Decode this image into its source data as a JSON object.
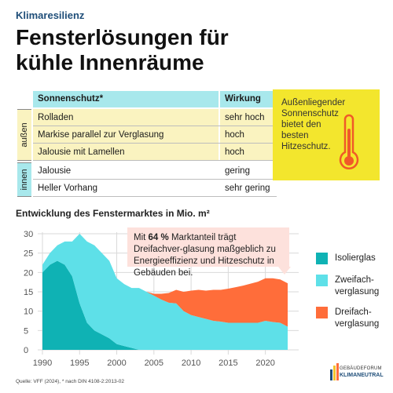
{
  "header": {
    "kicker": "Klimaresilienz",
    "title": "Fensterlösungen für kühle Innenräume"
  },
  "table": {
    "col_protection": "Sonnenschutz*",
    "col_effect": "Wirkung",
    "group_outside": "außen",
    "group_inside": "innen",
    "rows": [
      {
        "name": "Rolladen",
        "effect": "sehr hoch"
      },
      {
        "name": "Markise parallel zur Verglasung",
        "effect": "hoch"
      },
      {
        "name": "Jalousie mit Lamellen",
        "effect": "hoch"
      },
      {
        "name": "Jalousie",
        "effect": "gering"
      },
      {
        "name": "Heller Vorhang",
        "effect": "sehr gering"
      }
    ]
  },
  "note": {
    "text": "Außenliegender Sonnenschutz bietet den besten Hitzeschutz.",
    "icon": "thermometer-icon"
  },
  "chart_title": "Entwicklung des Fenstermarktes in Mio. m²",
  "callout": {
    "pre": "Mit ",
    "highlight": "64 %",
    "post": " Marktanteil trägt Dreifachver-glasung maßgeblich zu Energieeffizienz und Hitzeschutz in Gebäuden bei."
  },
  "chart_data": {
    "type": "area",
    "stacked": true,
    "title": "Entwicklung des Fenstermarktes in Mio. m²",
    "xlim": [
      1990,
      2023
    ],
    "ylim": [
      0,
      30
    ],
    "x_ticks": [
      1990,
      1995,
      2000,
      2005,
      2010,
      2015,
      2020
    ],
    "y_ticks": [
      0,
      5,
      10,
      15,
      20,
      25,
      30
    ],
    "grid": true,
    "x": [
      1990,
      1991,
      1992,
      1993,
      1994,
      1995,
      1996,
      1997,
      1998,
      1999,
      2000,
      2001,
      2002,
      2003,
      2004,
      2005,
      2006,
      2007,
      2008,
      2009,
      2010,
      2011,
      2012,
      2013,
      2014,
      2015,
      2016,
      2017,
      2018,
      2019,
      2020,
      2021,
      2022,
      2023
    ],
    "series": [
      {
        "name": "Isolierglas",
        "color": "#0fb2b4",
        "values": [
          20,
          22,
          23,
          22,
          19,
          12,
          7,
          5,
          4,
          3,
          1.5,
          1,
          0.5,
          0,
          0,
          0,
          0,
          0,
          0,
          0,
          0,
          0,
          0,
          0,
          0,
          0,
          0,
          0,
          0,
          0,
          0,
          0,
          0,
          0
        ]
      },
      {
        "name": "Zweifach-verglasung",
        "color": "#5ee0e8",
        "values": [
          2,
          3,
          4,
          6,
          9,
          18,
          21,
          22,
          21,
          20,
          17,
          16,
          15.5,
          16,
          15,
          14,
          13,
          12.2,
          12,
          10,
          9,
          8.5,
          8,
          7.5,
          7.3,
          7,
          7,
          7,
          7,
          7,
          7.5,
          7.2,
          7,
          6
        ]
      },
      {
        "name": "Dreifach-verglasung",
        "color": "#ff6d3a",
        "values": [
          0,
          0,
          0,
          0,
          0,
          0,
          0,
          0,
          0,
          0,
          0,
          0,
          0,
          0,
          0,
          0.5,
          1.5,
          2.5,
          3.5,
          5,
          6.3,
          7,
          7.3,
          8,
          8.2,
          8.8,
          9.2,
          9.6,
          10.1,
          10.6,
          11,
          11.3,
          11.2,
          11.2
        ]
      }
    ]
  },
  "source": "Quelle: VFF (2024), * nach DIN 4108-2:2013-02",
  "logo": {
    "line1": "GEBÄUDEFORUM",
    "line2": "KLIMANEUTRAL"
  }
}
